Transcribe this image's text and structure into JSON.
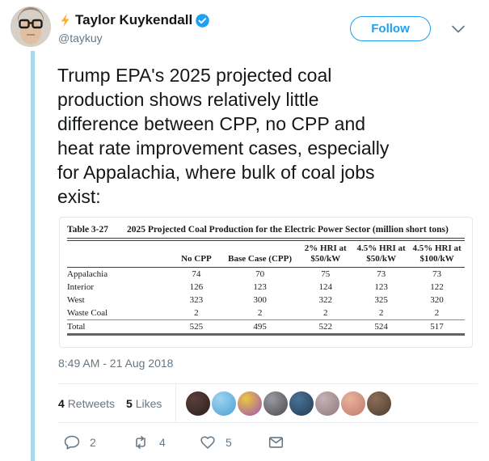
{
  "tweet": {
    "display_name": "Taylor Kuykendall",
    "handle": "@taykuy",
    "follow_label": "Follow",
    "body": "Trump EPA's 2025 projected coal\nproduction shows relatively little\ndifference between CPP, no CPP and\nheat rate improvement cases, especially\nfor Appalachia, where bulk of coal jobs\nexist:",
    "timestamp": "8:49 AM - 21 Aug 2018"
  },
  "table": {
    "label": "Table 3-27",
    "title": "2025 Projected Coal Production for the Electric Power Sector (million short tons)",
    "columns": [
      "",
      "No CPP",
      "Base Case (CPP)",
      "2% HRI at $50/kW",
      "4.5% HRI at $50/kW",
      "4.5% HRI at $100/kW"
    ],
    "rows": [
      {
        "label": "Appalachia",
        "values": [
          "74",
          "70",
          "75",
          "73",
          "73"
        ]
      },
      {
        "label": "Interior",
        "values": [
          "126",
          "123",
          "124",
          "123",
          "122"
        ]
      },
      {
        "label": "West",
        "values": [
          "323",
          "300",
          "322",
          "325",
          "320"
        ]
      },
      {
        "label": "Waste Coal",
        "values": [
          "2",
          "2",
          "2",
          "2",
          "2"
        ]
      },
      {
        "label": "Total",
        "values": [
          "525",
          "495",
          "522",
          "524",
          "517"
        ]
      }
    ]
  },
  "engagement": {
    "retweets_count": "4",
    "retweets_label": "Retweets",
    "likes_count": "5",
    "likes_label": "Likes",
    "avatars": [
      {
        "c1": "#5a403a",
        "c2": "#2b1f1e"
      },
      {
        "c1": "#9ed4f0",
        "c2": "#4d9fd6"
      },
      {
        "c1": "#e8c93f",
        "c2": "#a04fb5"
      },
      {
        "c1": "#9a9a9e",
        "c2": "#4a4a50"
      },
      {
        "c1": "#4a7396",
        "c2": "#243c54"
      },
      {
        "c1": "#c4b2b4",
        "c2": "#8d7880"
      },
      {
        "c1": "#e8b39e",
        "c2": "#c07a6a"
      },
      {
        "c1": "#8a6f58",
        "c2": "#4e3c30"
      }
    ]
  },
  "actions": {
    "reply_count": "2",
    "retweet_count": "4",
    "like_count": "5"
  },
  "icons": {
    "name_prefix": "lightning-bolt",
    "badge": "verified-blue-check",
    "more": "chevron-down",
    "reply": "speech-bubble",
    "retweet": "retweet-arrows",
    "like": "heart-outline",
    "dm": "envelope"
  },
  "colors": {
    "accent_blue": "#1da1f2",
    "text_dark": "#14171a",
    "text_gray": "#657786",
    "divider": "#e6ecf0",
    "thread_line": "#aad9ee"
  }
}
